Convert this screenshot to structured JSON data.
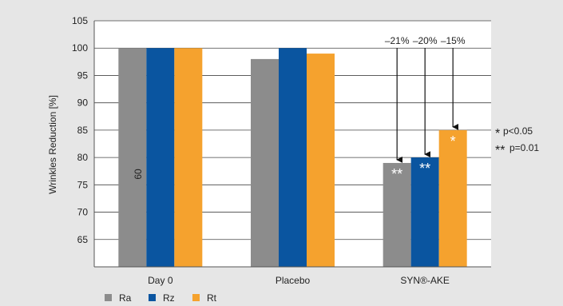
{
  "chart_data": {
    "type": "bar",
    "title": "",
    "xlabel": "",
    "ylabel": "Wrinkles Reduction [%]",
    "ylim": [
      60,
      105
    ],
    "yticks": [
      65,
      70,
      75,
      80,
      85,
      90,
      95,
      100,
      105
    ],
    "stray_tick_label": "60",
    "categories": [
      "Day 0",
      "Placebo",
      "SYN®-AKE"
    ],
    "series": [
      {
        "name": "Ra",
        "color": "#8c8c8c",
        "values": [
          100,
          98,
          79
        ]
      },
      {
        "name": "Rz",
        "color": "#0a55a0",
        "values": [
          100,
          100,
          80
        ]
      },
      {
        "name": "Rt",
        "color": "#f5a22e",
        "values": [
          100,
          99,
          85
        ]
      }
    ],
    "bar_marks": [
      {
        "category": 2,
        "series": 0,
        "text": "**"
      },
      {
        "category": 2,
        "series": 1,
        "text": "**"
      },
      {
        "category": 2,
        "series": 2,
        "text": "*"
      }
    ],
    "annotations": [
      {
        "category": 2,
        "series": 0,
        "label": "–21%"
      },
      {
        "category": 2,
        "series": 1,
        "label": "–20%"
      },
      {
        "category": 2,
        "series": 2,
        "label": "–15%"
      }
    ],
    "significance": [
      {
        "symbol": "*",
        "text": "p<0.05"
      },
      {
        "symbol": "**",
        "text": "p=0.01"
      }
    ],
    "grid": true,
    "legend_position": "bottom-left"
  }
}
